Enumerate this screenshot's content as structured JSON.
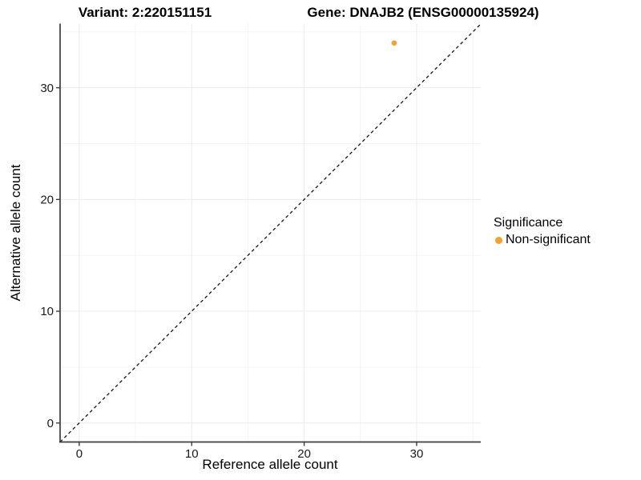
{
  "figure": {
    "variant_title": "Variant: 2:220151151",
    "gene_title": "Gene: DNAJB2 (ENSG00000135924)"
  },
  "chart_data": {
    "type": "scatter",
    "xlabel": "Reference allele count",
    "ylabel": "Alternative allele count",
    "x_ticks": [
      0,
      10,
      20,
      30
    ],
    "y_ticks": [
      0,
      10,
      20,
      30
    ],
    "x_minor_ticks": [
      5,
      15,
      25,
      35
    ],
    "y_minor_ticks": [
      5,
      15,
      25,
      35
    ],
    "xlim": [
      -1.7,
      35.7
    ],
    "ylim": [
      -1.7,
      35.7
    ],
    "grid": "major+minor",
    "points": [
      {
        "x": 28,
        "y": 34,
        "series": "Non-significant"
      }
    ],
    "reference_line": {
      "kind": "identity y=x",
      "style": "dashed",
      "span": [
        -1.7,
        35.7
      ]
    },
    "legend": {
      "title": "Significance",
      "position": "right",
      "items": [
        {
          "label": "Non-significant",
          "color": "#F9A02B"
        }
      ]
    }
  },
  "colors": {
    "grid_major": "#EBEBEB",
    "grid_minor": "#F5F5F5",
    "axis_line": "#3D3D3D",
    "tick_label": "#1A1A1A",
    "reference_line": "#141414"
  }
}
